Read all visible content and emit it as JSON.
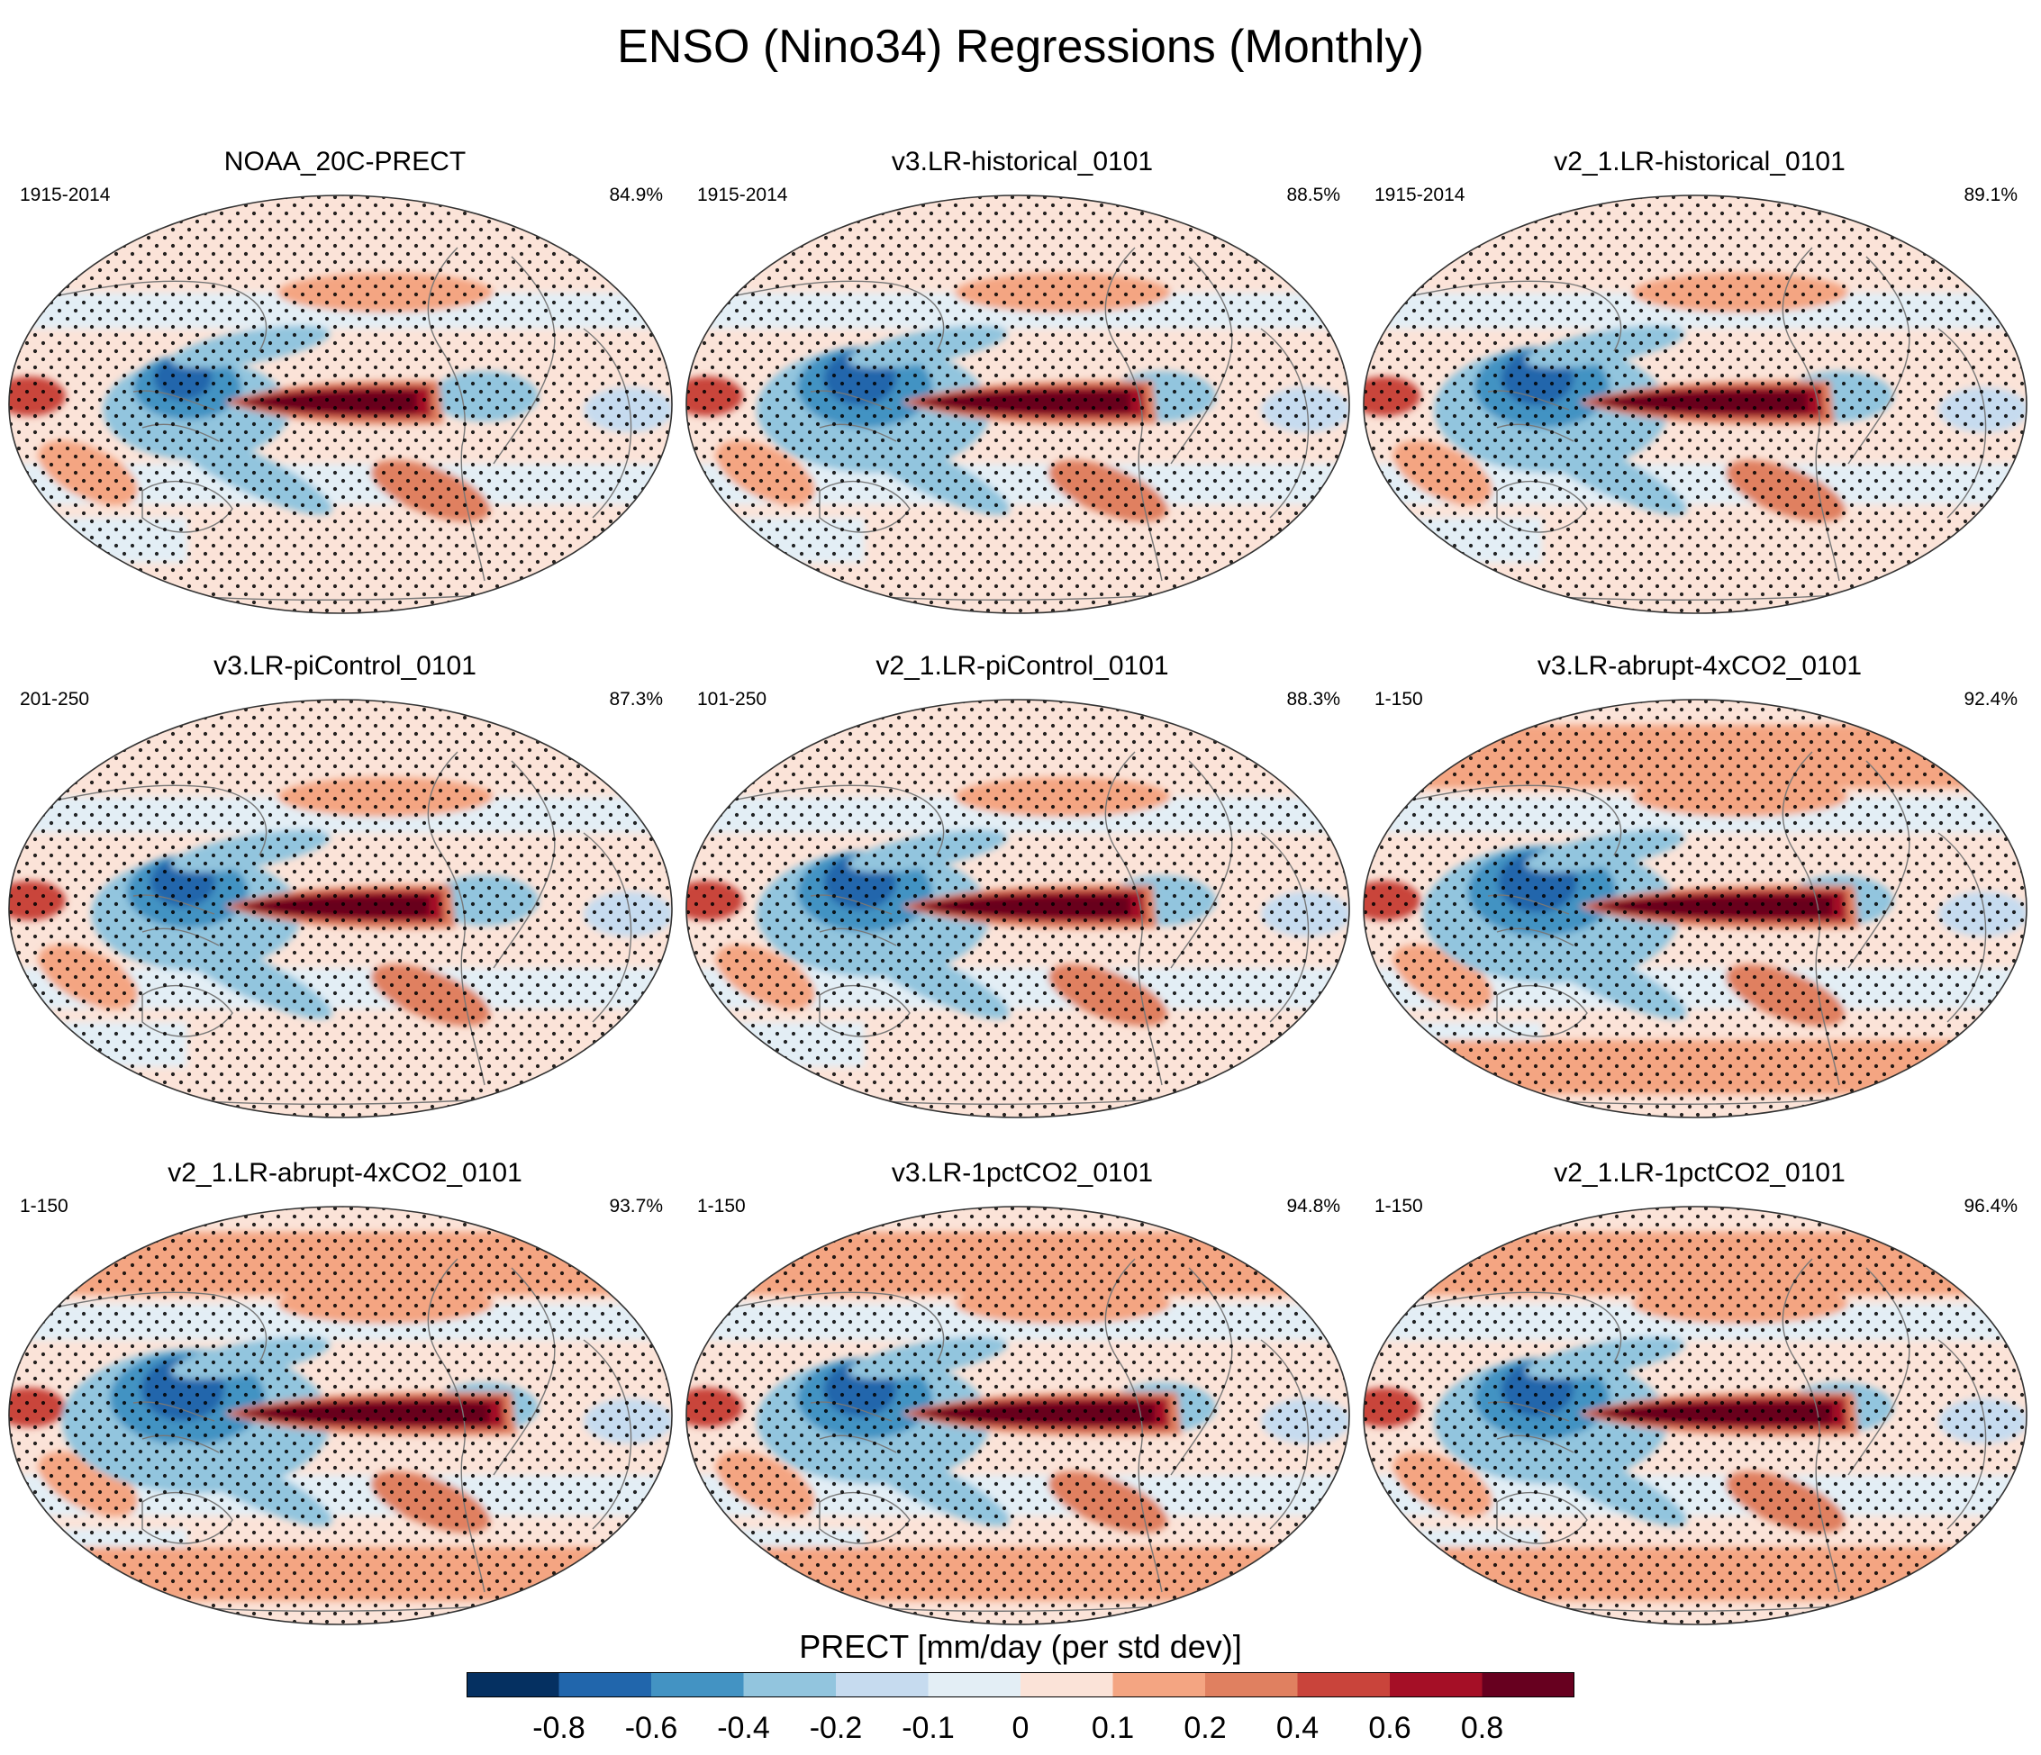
{
  "title": "ENSO (Nino34) Regressions (Monthly)",
  "panels": [
    {
      "title": "NOAA_20C-PRECT",
      "period": "1915-2014",
      "pct": "84.9%"
    },
    {
      "title": "v3.LR-historical_0101",
      "period": "1915-2014",
      "pct": "88.5%"
    },
    {
      "title": "v2_1.LR-historical_0101",
      "period": "1915-2014",
      "pct": "89.1%"
    },
    {
      "title": "v3.LR-piControl_0101",
      "period": "201-250",
      "pct": "87.3%"
    },
    {
      "title": "v2_1.LR-piControl_0101",
      "period": "101-250",
      "pct": "88.3%"
    },
    {
      "title": "v3.LR-abrupt-4xCO2_0101",
      "period": "1-150",
      "pct": "92.4%"
    },
    {
      "title": "v2_1.LR-abrupt-4xCO2_0101",
      "period": "1-150",
      "pct": "93.7%"
    },
    {
      "title": "v3.LR-1pctCO2_0101",
      "period": "1-150",
      "pct": "94.8%"
    },
    {
      "title": "v2_1.LR-1pctCO2_0101",
      "period": "1-150",
      "pct": "96.4%"
    }
  ],
  "colorbar": {
    "title": "PRECT [mm/day (per std dev)]",
    "ticks": [
      "-0.8",
      "-0.6",
      "-0.4",
      "-0.2",
      "-0.1",
      "0",
      "0.1",
      "0.2",
      "0.4",
      "0.6",
      "0.8"
    ],
    "colors": [
      "#053061",
      "#2166ac",
      "#4393c3",
      "#92c5de",
      "#c6dbef",
      "#e3eef5",
      "#fbe3d8",
      "#f4a582",
      "#e08060",
      "#c9443b",
      "#a50f26",
      "#67001f"
    ]
  },
  "chart_data": {
    "type": "heatmap",
    "title": "ENSO (Nino34) Regressions (Monthly)",
    "variable": "PRECT",
    "units": "mm/day (per std dev)",
    "levels": [
      -0.8,
      -0.6,
      -0.4,
      -0.2,
      -0.1,
      0,
      0.1,
      0.2,
      0.4,
      0.6,
      0.8
    ],
    "projection": "global map (Robinson-like)",
    "panels": [
      {
        "name": "NOAA_20C-PRECT",
        "years": "1915-2014",
        "pattern_stat": 84.9
      },
      {
        "name": "v3.LR-historical_0101",
        "years": "1915-2014",
        "pattern_stat": 88.5
      },
      {
        "name": "v2_1.LR-historical_0101",
        "years": "1915-2014",
        "pattern_stat": 89.1
      },
      {
        "name": "v3.LR-piControl_0101",
        "years": "201-250",
        "pattern_stat": 87.3
      },
      {
        "name": "v2_1.LR-piControl_0101",
        "years": "101-250",
        "pattern_stat": 88.3
      },
      {
        "name": "v3.LR-abrupt-4xCO2_0101",
        "years": "1-150",
        "pattern_stat": 92.4
      },
      {
        "name": "v2_1.LR-abrupt-4xCO2_0101",
        "years": "1-150",
        "pattern_stat": 93.7
      },
      {
        "name": "v3.LR-1pctCO2_0101",
        "years": "1-150",
        "pattern_stat": 94.8
      },
      {
        "name": "v2_1.LR-1pctCO2_0101",
        "years": "1-150",
        "pattern_stat": 96.4
      }
    ]
  }
}
